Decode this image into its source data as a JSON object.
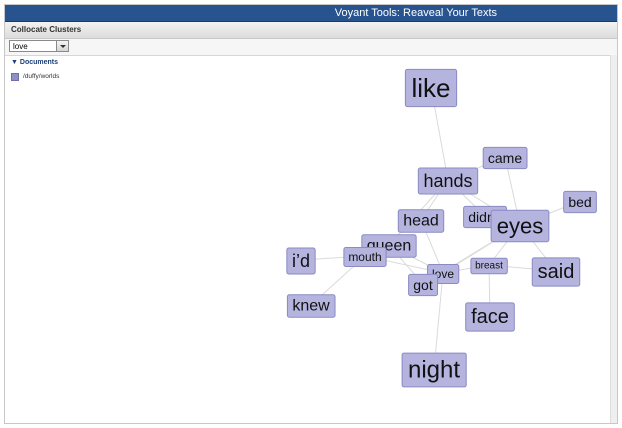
{
  "app": {
    "title": "Voyant Tools: Reaveal Your Texts"
  },
  "panel": {
    "title": "Collocate Clusters"
  },
  "toolbar": {
    "keyword_value": "love"
  },
  "documents": {
    "header": "Documents",
    "expand_symbol": "▼",
    "items": [
      {
        "label": "/duffy/worlds",
        "color": "#8f8fc8"
      }
    ]
  },
  "colors": {
    "titlebar": "#27538f",
    "node_fill": "#b4b4de",
    "node_stroke": "#8a8ac4",
    "edge": "#dadada"
  },
  "graph": {
    "nodes": [
      {
        "id": "like",
        "label": "like",
        "weight": 5
      },
      {
        "id": "came",
        "label": "came",
        "weight": 2
      },
      {
        "id": "hands",
        "label": "hands",
        "weight": 3
      },
      {
        "id": "bed",
        "label": "bed",
        "weight": 2
      },
      {
        "id": "head",
        "label": "head",
        "weight": 2.5
      },
      {
        "id": "didnt",
        "label": "didn’t",
        "weight": 2
      },
      {
        "id": "eyes",
        "label": "eyes",
        "weight": 4
      },
      {
        "id": "queen",
        "label": "queen",
        "weight": 2.5
      },
      {
        "id": "id",
        "label": "i’d",
        "weight": 3
      },
      {
        "id": "mouth",
        "label": "mouth",
        "weight": 1.5
      },
      {
        "id": "love",
        "label": "love",
        "weight": 1.5
      },
      {
        "id": "breast",
        "label": "breast",
        "weight": 1
      },
      {
        "id": "said",
        "label": "said",
        "weight": 3.5
      },
      {
        "id": "got",
        "label": "got",
        "weight": 2
      },
      {
        "id": "knew",
        "label": "knew",
        "weight": 2.5
      },
      {
        "id": "face",
        "label": "face",
        "weight": 3.5
      },
      {
        "id": "night",
        "label": "night",
        "weight": 4.5
      }
    ],
    "edges": [
      [
        "like",
        "hands"
      ],
      [
        "hands",
        "came"
      ],
      [
        "hands",
        "head"
      ],
      [
        "hands",
        "didnt"
      ],
      [
        "hands",
        "eyes"
      ],
      [
        "hands",
        "queen"
      ],
      [
        "came",
        "eyes"
      ],
      [
        "bed",
        "eyes"
      ],
      [
        "didnt",
        "eyes"
      ],
      [
        "eyes",
        "said"
      ],
      [
        "eyes",
        "breast"
      ],
      [
        "eyes",
        "love"
      ],
      [
        "eyes",
        "got"
      ],
      [
        "head",
        "love"
      ],
      [
        "queen",
        "mouth"
      ],
      [
        "queen",
        "love"
      ],
      [
        "queen",
        "got"
      ],
      [
        "mouth",
        "id"
      ],
      [
        "mouth",
        "love"
      ],
      [
        "mouth",
        "knew"
      ],
      [
        "love",
        "breast"
      ],
      [
        "love",
        "got"
      ],
      [
        "love",
        "night"
      ],
      [
        "breast",
        "said"
      ],
      [
        "breast",
        "face"
      ]
    ]
  }
}
